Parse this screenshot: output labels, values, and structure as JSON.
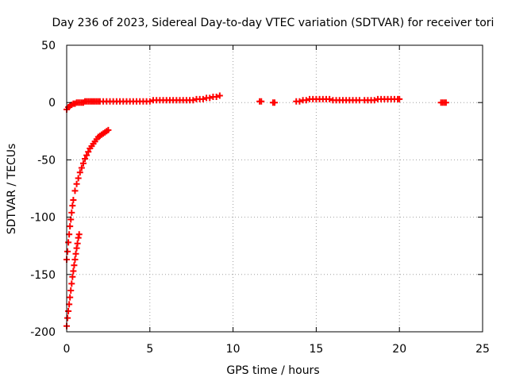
{
  "chart_data": {
    "type": "scatter",
    "title": "Day 236 of 2023, Sidereal Day-to-day VTEC variation (SDTVAR) for receiver tori",
    "xlabel": "GPS time / hours",
    "ylabel": "SDTVAR / TECUs",
    "xlim": [
      0,
      25
    ],
    "ylim": [
      -200,
      50
    ],
    "xticks": [
      0,
      5,
      10,
      15,
      20,
      25
    ],
    "yticks": [
      50,
      0,
      -50,
      -100,
      -150,
      -200
    ],
    "grid": true,
    "marker": "+",
    "colors": {
      "series": "#ff0000",
      "grid": "#a0a0a0",
      "axis": "#000000"
    },
    "series": [
      {
        "name": "SDTVAR",
        "x": [
          0.0,
          0.1,
          0.2,
          0.3,
          0.4,
          0.5,
          0.6,
          0.7,
          0.8,
          0.9,
          1.0,
          1.1,
          1.2,
          1.3,
          1.4,
          1.5,
          1.6,
          1.7,
          1.8,
          1.9,
          2.0,
          2.2,
          2.4,
          2.6,
          2.8,
          3.0,
          3.2,
          3.4,
          3.6,
          3.8,
          4.0,
          4.2,
          4.4,
          4.6,
          4.8,
          5.0,
          5.2,
          5.4,
          5.6,
          5.8,
          6.0,
          6.2,
          6.4,
          6.6,
          6.8,
          7.0,
          7.2,
          7.4,
          7.6,
          7.8,
          8.0,
          8.2,
          8.4,
          8.6,
          8.8,
          9.0,
          9.2,
          11.6,
          11.7,
          12.4,
          12.5,
          13.8,
          14.0,
          14.2,
          14.4,
          14.6,
          14.8,
          15.0,
          15.2,
          15.4,
          15.6,
          15.8,
          16.0,
          16.2,
          16.4,
          16.6,
          16.8,
          17.0,
          17.2,
          17.4,
          17.6,
          17.9,
          18.1,
          18.3,
          18.5,
          18.7,
          18.9,
          19.1,
          19.3,
          19.5,
          19.7,
          19.9,
          20.0,
          22.5,
          22.6,
          22.7,
          22.8,
          0.0,
          0.05,
          0.1,
          0.15,
          0.2,
          0.25,
          0.3,
          0.35,
          0.4,
          0.5,
          0.6,
          0.7,
          0.8,
          0.9,
          1.0,
          1.1,
          1.2,
          1.3,
          1.4,
          1.5,
          1.6,
          1.7,
          1.8,
          1.9,
          2.0,
          2.1,
          2.2,
          2.3,
          2.4,
          2.5,
          0.0,
          0.05,
          0.1,
          0.15,
          0.2,
          0.25,
          0.3,
          0.35,
          0.4,
          0.45,
          0.5,
          0.55,
          0.6,
          0.65,
          0.7,
          0.75
        ],
        "y": [
          -6,
          -4,
          -3,
          -2,
          -1,
          -1,
          0,
          0,
          0,
          0,
          0,
          1,
          1,
          1,
          1,
          1,
          1,
          1,
          1,
          1,
          1,
          1,
          1,
          1,
          1,
          1,
          1,
          1,
          1,
          1,
          1,
          1,
          1,
          1,
          1,
          1,
          2,
          2,
          2,
          2,
          2,
          2,
          2,
          2,
          2,
          2,
          2,
          2,
          2,
          3,
          3,
          3,
          4,
          4,
          5,
          5,
          6,
          1,
          1,
          0,
          0,
          1,
          1,
          2,
          2,
          3,
          3,
          3,
          3,
          3,
          3,
          3,
          2,
          2,
          2,
          2,
          2,
          2,
          2,
          2,
          2,
          2,
          2,
          2,
          2,
          3,
          3,
          3,
          3,
          3,
          3,
          3,
          3,
          0,
          0,
          0,
          0,
          -137,
          -130,
          -122,
          -115,
          -108,
          -102,
          -96,
          -90,
          -85,
          -77,
          -71,
          -66,
          -61,
          -57,
          -53,
          -49,
          -46,
          -43,
          -40,
          -38,
          -36,
          -34,
          -32,
          -30,
          -29,
          -28,
          -27,
          -26,
          -25,
          -24,
          -195,
          -188,
          -182,
          -176,
          -170,
          -164,
          -158,
          -152,
          -147,
          -142,
          -137,
          -132,
          -127,
          -123,
          -118,
          -115
        ]
      }
    ]
  }
}
